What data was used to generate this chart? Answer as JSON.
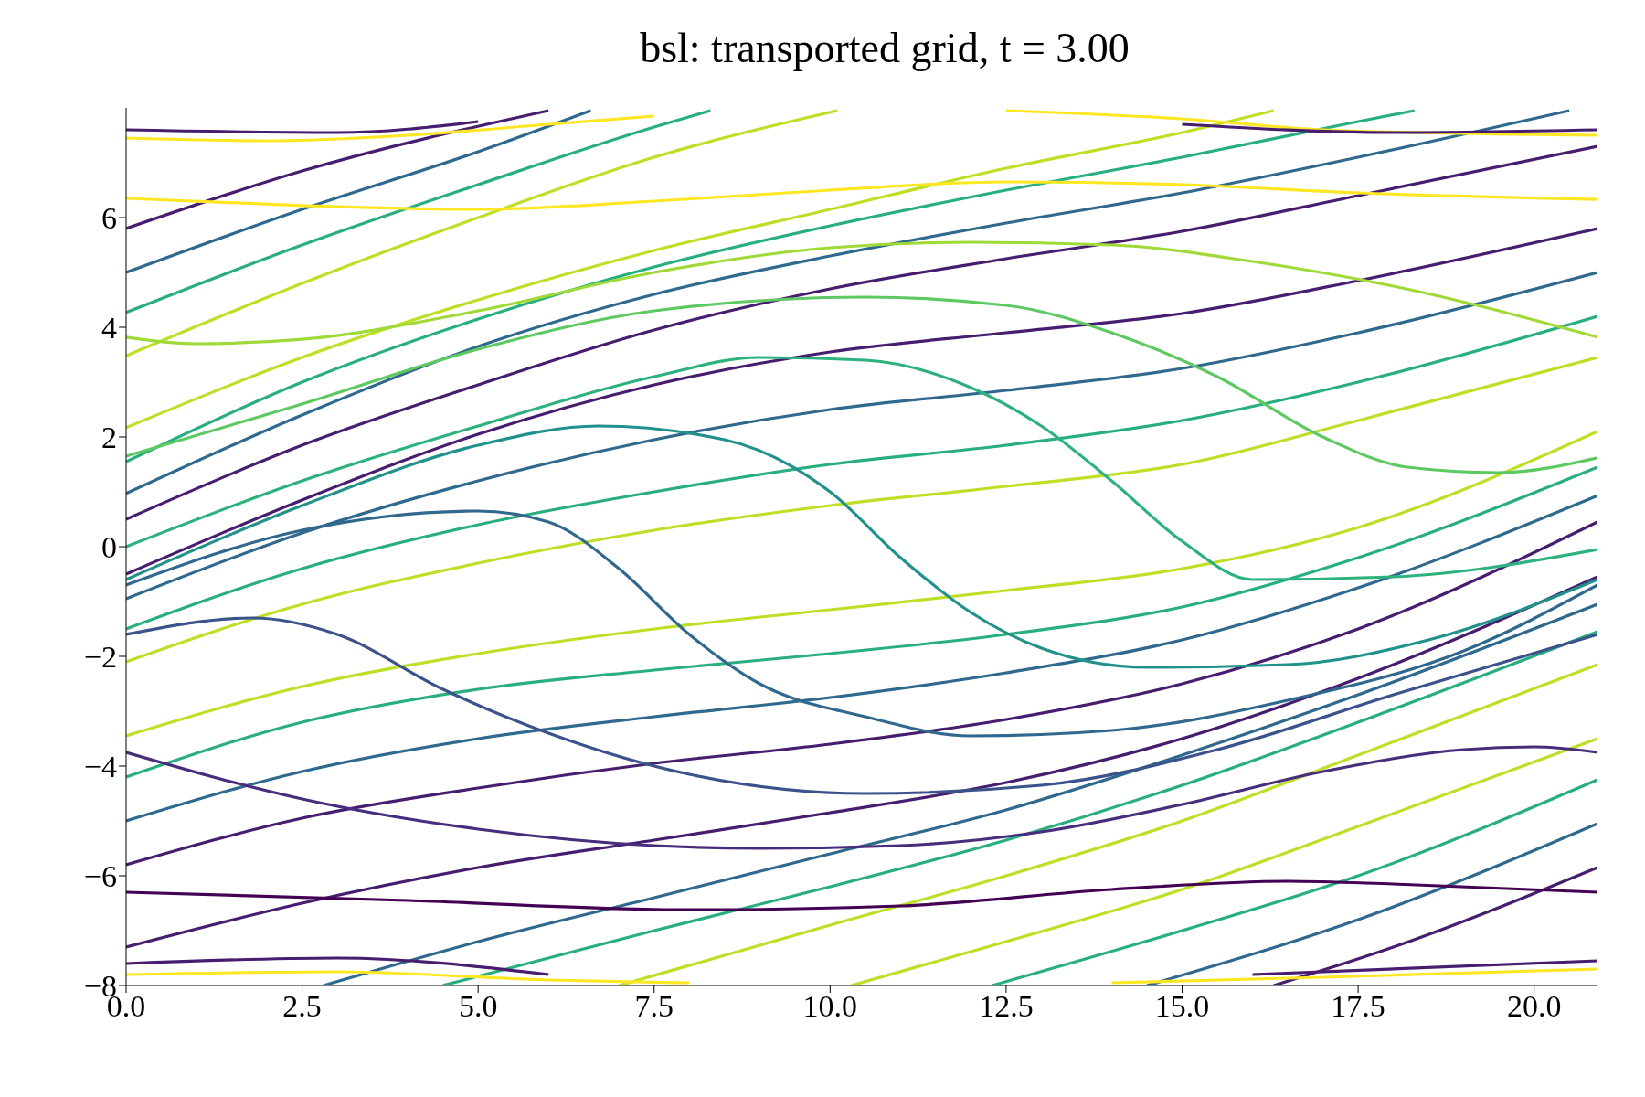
{
  "chart_data": {
    "type": "line",
    "title": "bsl: transported grid, t = 3.00",
    "xlim": [
      0,
      20.9
    ],
    "ylim": [
      -8,
      8
    ],
    "xticks": [
      {
        "value": 0,
        "label": "0.0"
      },
      {
        "value": 2.5,
        "label": "2.5"
      },
      {
        "value": 5,
        "label": "5.0"
      },
      {
        "value": 7.5,
        "label": "7.5"
      },
      {
        "value": 10,
        "label": "10.0"
      },
      {
        "value": 12.5,
        "label": "12.5"
      },
      {
        "value": 15,
        "label": "15.0"
      },
      {
        "value": 17.5,
        "label": "17.5"
      },
      {
        "value": 20,
        "label": "20.0"
      }
    ],
    "yticks": [
      {
        "value": -8,
        "label": "−8"
      },
      {
        "value": -6,
        "label": "−6"
      },
      {
        "value": -4,
        "label": "−4"
      },
      {
        "value": -2,
        "label": "−2"
      },
      0,
      2,
      4,
      6
    ],
    "series": [
      {
        "color": "#471d6f",
        "x": [
          0,
          2.5,
          5,
          7.5,
          10,
          12.5,
          15,
          17.5,
          20.9
        ],
        "values": [
          -7.3,
          -6.5,
          -5.85,
          -5.35,
          -4.85,
          -4.3,
          -3.5,
          -2.4,
          -0.55
        ]
      },
      {
        "color": "#471d6f",
        "x": [
          0,
          2.5,
          5,
          7.5,
          10,
          12.5,
          15,
          17.5,
          20.9
        ],
        "values": [
          -5.8,
          -4.95,
          -4.4,
          -3.95,
          -3.6,
          -3.15,
          -2.5,
          -1.5,
          0.45
        ]
      },
      {
        "color": "#30698e",
        "x": [
          0,
          2.5,
          5,
          7.5,
          10,
          12.5,
          15,
          17.5,
          20.9
        ],
        "values": [
          -5.0,
          -4.1,
          -3.5,
          -3.1,
          -2.75,
          -2.3,
          -1.7,
          -0.75,
          0.93
        ]
      },
      {
        "color": "#29af7f",
        "x": [
          0,
          2.5,
          5,
          7.5,
          10,
          12.5,
          15,
          17.5,
          20.9
        ],
        "values": [
          -4.2,
          -3.2,
          -2.6,
          -2.25,
          -1.95,
          -1.6,
          -1.1,
          -0.2,
          1.45
        ]
      },
      {
        "color": "#bddf26",
        "x": [
          0,
          2.5,
          5,
          7.5,
          10,
          12.5,
          15,
          17.5,
          20.9
        ],
        "values": [
          -3.45,
          -2.55,
          -1.95,
          -1.5,
          -1.15,
          -0.8,
          -0.4,
          0.35,
          2.1
        ]
      },
      {
        "color": "#bddf26",
        "x": [
          0,
          2.5,
          5,
          7.5,
          10,
          12.5,
          15,
          17.5,
          20.9
        ],
        "values": [
          -2.1,
          -1.05,
          -0.3,
          0.3,
          0.75,
          1.1,
          1.5,
          2.3,
          3.45
        ]
      },
      {
        "color": "#29af7f",
        "x": [
          0,
          2.5,
          5,
          7.5,
          10,
          12.5,
          15,
          17.5,
          20.9
        ],
        "values": [
          -1.5,
          -0.4,
          0.4,
          1.0,
          1.5,
          1.85,
          2.3,
          3.0,
          4.2
        ]
      },
      {
        "color": "#30698e",
        "x": [
          0,
          2.5,
          5,
          7.5,
          10,
          12.5,
          15,
          17.5,
          20.9
        ],
        "values": [
          -0.95,
          0.25,
          1.2,
          1.95,
          2.5,
          2.85,
          3.25,
          3.9,
          5.0
        ]
      },
      {
        "color": "#471d6f",
        "x": [
          0,
          2.5,
          5,
          7.5,
          10,
          12.5,
          15,
          17.5,
          20.9
        ],
        "values": [
          -0.5,
          0.85,
          2.05,
          2.95,
          3.55,
          3.9,
          4.25,
          4.85,
          5.8
        ]
      },
      {
        "color": "#471d6f",
        "x": [
          0,
          2.5,
          5,
          7.5,
          10,
          12.5,
          15,
          17.5,
          20.9
        ],
        "values": [
          0.5,
          1.85,
          2.95,
          3.95,
          4.7,
          5.25,
          5.75,
          6.4,
          7.3
        ]
      },
      {
        "color": "#30698e",
        "x": [
          0,
          2.5,
          5,
          7.5,
          10,
          12.5,
          15,
          17.5,
          20.5
        ],
        "values": [
          0.97,
          2.4,
          3.65,
          4.6,
          5.3,
          5.9,
          6.45,
          7.1,
          7.95
        ]
      },
      {
        "color": "#29af7f",
        "x": [
          0,
          2.5,
          5,
          7.5,
          10,
          12.5,
          15,
          17.5,
          18.3
        ],
        "values": [
          1.55,
          3.0,
          4.15,
          5.1,
          5.85,
          6.5,
          7.1,
          7.75,
          7.95
        ]
      },
      {
        "color": "#bddf26",
        "x": [
          0,
          2.5,
          5,
          7.5,
          10,
          12.5,
          15,
          16.3
        ],
        "values": [
          2.17,
          3.45,
          4.5,
          5.4,
          6.15,
          6.9,
          7.55,
          7.95
        ]
      },
      {
        "color": "#bddf26",
        "x": [
          0,
          2.5,
          5,
          7.5,
          10.1
        ],
        "values": [
          3.48,
          4.8,
          6.0,
          7.1,
          7.95
        ]
      },
      {
        "color": "#29af7f",
        "x": [
          0,
          2.5,
          5,
          7.5,
          8.3
        ],
        "values": [
          4.27,
          5.5,
          6.6,
          7.65,
          7.95
        ]
      },
      {
        "color": "#30698e",
        "x": [
          0,
          2.5,
          5,
          6.6
        ],
        "values": [
          5.0,
          6.15,
          7.2,
          7.95
        ]
      },
      {
        "color": "#471d6f",
        "x": [
          0,
          2.5,
          6.0
        ],
        "values": [
          5.8,
          6.85,
          7.95
        ]
      },
      {
        "color": "#30698e",
        "x": [
          2.8,
          5,
          7.5,
          10,
          12.5,
          15,
          17.5,
          20.9
        ],
        "values": [
          -8,
          -7.2,
          -6.4,
          -5.6,
          -4.8,
          -3.8,
          -2.7,
          -1.05
        ]
      },
      {
        "color": "#29af7f",
        "x": [
          4.5,
          7.5,
          10,
          12.5,
          15,
          17.5,
          20.9
        ],
        "values": [
          -8,
          -7.0,
          -6.2,
          -5.35,
          -4.35,
          -3.2,
          -1.55
        ]
      },
      {
        "color": "#bddf26",
        "x": [
          7,
          10,
          12.5,
          15,
          17.5,
          20.9
        ],
        "values": [
          -8,
          -6.9,
          -6.0,
          -5.0,
          -3.8,
          -2.15
        ]
      },
      {
        "color": "#bddf26",
        "x": [
          10.3,
          12.5,
          15,
          17.5,
          20.9
        ],
        "values": [
          -8,
          -7.2,
          -6.25,
          -5.1,
          -3.5
        ]
      },
      {
        "color": "#29af7f",
        "x": [
          12.3,
          15,
          17.5,
          20.9
        ],
        "values": [
          -8,
          -7.0,
          -6.0,
          -4.25
        ]
      },
      {
        "color": "#30698e",
        "x": [
          14.5,
          17.5,
          20.9
        ],
        "values": [
          -8,
          -6.8,
          -5.05
        ]
      },
      {
        "color": "#471d6f",
        "x": [
          16.3,
          18,
          20.9
        ],
        "values": [
          -8,
          -7.3,
          -5.85
        ]
      },
      {
        "color": "#fde725",
        "x": [
          0,
          2.5,
          5,
          7.5,
          10,
          12.5,
          15,
          17.5,
          20.9
        ],
        "values": [
          6.35,
          6.22,
          6.15,
          6.3,
          6.5,
          6.65,
          6.6,
          6.45,
          6.33
        ]
      },
      {
        "color": "#a0da39",
        "x": [
          0,
          1,
          2.5,
          5,
          7.5,
          10,
          12,
          14,
          16,
          18,
          20.9
        ],
        "values": [
          3.82,
          3.7,
          3.78,
          4.3,
          5.0,
          5.45,
          5.55,
          5.5,
          5.2,
          4.75,
          3.82
        ]
      },
      {
        "color": "#5ec962",
        "x": [
          0,
          2.5,
          5,
          7.5,
          10.5,
          12.5,
          14,
          15.5,
          17,
          18.2,
          19.5,
          20.9
        ],
        "values": [
          1.65,
          2.6,
          3.6,
          4.3,
          4.55,
          4.4,
          3.9,
          3.1,
          2.0,
          1.45,
          1.35,
          1.62
        ]
      },
      {
        "color": "#2db27d",
        "x": [
          0,
          2.5,
          5,
          7.5,
          9,
          10.5,
          12,
          13,
          14,
          15,
          16,
          18,
          20.9
        ],
        "values": [
          0.0,
          1.2,
          2.2,
          3.1,
          3.45,
          3.4,
          2.9,
          2.2,
          1.2,
          0.1,
          -0.6,
          -0.55,
          -0.05
        ]
      },
      {
        "color": "#21918c",
        "x": [
          0,
          2.5,
          5,
          6.7,
          8.5,
          10,
          11,
          12,
          13,
          14.5,
          16.5,
          18.5,
          20.9
        ],
        "values": [
          -0.6,
          0.75,
          1.85,
          2.2,
          1.95,
          1.0,
          -0.2,
          -1.2,
          -1.85,
          -2.2,
          -2.15,
          -1.7,
          -0.6
        ]
      },
      {
        "color": "#31688e",
        "x": [
          0,
          2.5,
          5,
          6,
          7,
          8,
          9,
          10.5,
          12,
          14,
          16.5,
          19,
          20.9
        ],
        "values": [
          -0.7,
          0.3,
          0.65,
          0.45,
          -0.4,
          -1.6,
          -2.5,
          -3.1,
          -3.45,
          -3.35,
          -2.8,
          -1.9,
          -0.7
        ]
      },
      {
        "color": "#3b528b",
        "x": [
          0,
          1.8,
          3,
          4.5,
          6,
          8,
          10.5,
          13,
          15.5,
          18,
          20.9
        ],
        "values": [
          -1.6,
          -1.3,
          -1.6,
          -2.6,
          -3.4,
          -4.15,
          -4.5,
          -4.35,
          -3.7,
          -2.7,
          -1.6
        ]
      },
      {
        "color": "#472d7b",
        "x": [
          0,
          2.5,
          5,
          7.5,
          9,
          11,
          13,
          15,
          17,
          19,
          20,
          20.9
        ],
        "values": [
          -3.75,
          -4.6,
          -5.15,
          -5.45,
          -5.5,
          -5.45,
          -5.2,
          -4.7,
          -4.1,
          -3.7,
          -3.65,
          -3.75
        ]
      },
      {
        "color": "#440154",
        "x": [
          0,
          4,
          8,
          11,
          14,
          16.5,
          18,
          20.9
        ],
        "values": [
          -6.3,
          -6.45,
          -6.62,
          -6.55,
          -6.25,
          -6.1,
          -6.15,
          -6.3
        ]
      },
      {
        "color": "#fde725",
        "x": [
          0,
          2,
          4,
          6,
          7.5
        ],
        "values": [
          7.45,
          7.4,
          7.5,
          7.7,
          7.85
        ]
      },
      {
        "color": "#471d6f",
        "x": [
          0,
          3,
          5
        ],
        "values": [
          7.6,
          7.55,
          7.75
        ]
      },
      {
        "color": "#fde725",
        "x": [
          12.5,
          15,
          17,
          20.9
        ],
        "values": [
          7.95,
          7.8,
          7.6,
          7.5
        ]
      },
      {
        "color": "#471d6f",
        "x": [
          15,
          18,
          20.9
        ],
        "values": [
          7.7,
          7.55,
          7.6
        ]
      },
      {
        "color": "#fde725",
        "x": [
          0,
          3,
          6,
          8
        ],
        "values": [
          -7.8,
          -7.75,
          -7.9,
          -7.95
        ]
      },
      {
        "color": "#471d6f",
        "x": [
          0,
          3,
          6
        ],
        "values": [
          -7.6,
          -7.5,
          -7.8
        ]
      },
      {
        "color": "#fde725",
        "x": [
          14,
          17,
          20.9
        ],
        "values": [
          -7.95,
          -7.85,
          -7.7
        ]
      },
      {
        "color": "#471d6f",
        "x": [
          16,
          20.9
        ],
        "values": [
          -7.8,
          -7.55
        ]
      }
    ]
  }
}
